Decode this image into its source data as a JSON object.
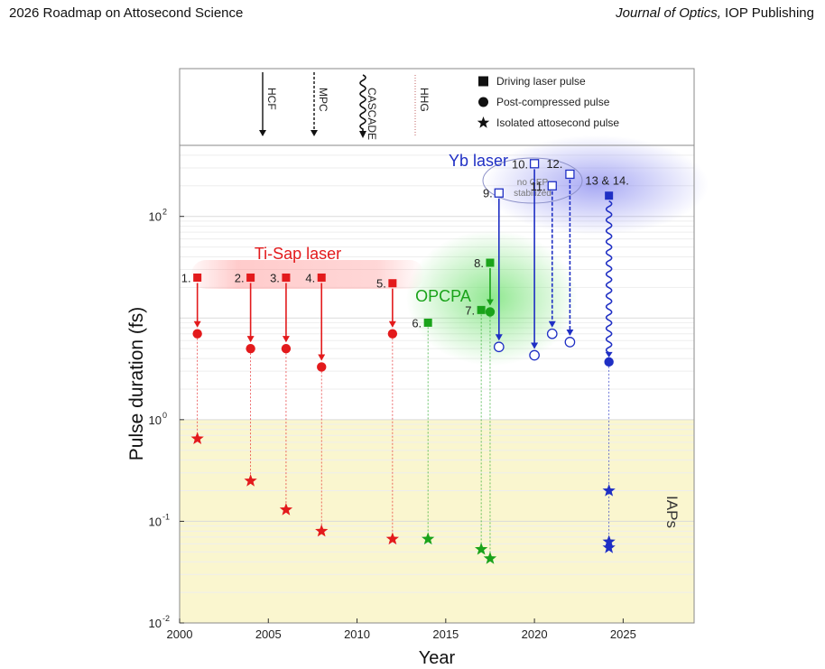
{
  "header": {
    "left": "2026 Roadmap on Attosecond Science",
    "right_italic": "Journal of Optics,",
    "right_plain": " IOP Publishing"
  },
  "legend": {
    "items": [
      {
        "marker": "square",
        "label": "Driving laser pulse"
      },
      {
        "marker": "circle",
        "label": "Post-compressed pulse"
      },
      {
        "marker": "star",
        "label": "Isolated attosecond pulse"
      }
    ],
    "techniques": [
      {
        "label": "HCF",
        "style": "solid"
      },
      {
        "label": "MPC",
        "style": "dashed"
      },
      {
        "label": "CASCADE",
        "style": "wavy"
      },
      {
        "label": "HHG",
        "style": "dotted"
      }
    ]
  },
  "chart_data": {
    "type": "scatter",
    "xlabel": "Year",
    "ylabel": "Pulse duration (fs)",
    "xlim": [
      2000,
      2029
    ],
    "ylim": [
      0.01,
      500
    ],
    "yscale": "log",
    "x_ticks": [
      2000,
      2005,
      2010,
      2015,
      2020,
      2025
    ],
    "y_ticks": [
      {
        "value": 0.01,
        "base": "10",
        "exp": "-2"
      },
      {
        "value": 0.1,
        "base": "10",
        "exp": "-1"
      },
      {
        "value": 1,
        "base": "10",
        "exp": "0"
      },
      {
        "value": 100,
        "base": "10",
        "exp": "2"
      }
    ],
    "shaded_region": {
      "label": "IAPs",
      "from": 0.01,
      "to": 1.0,
      "color": "#faf6cf"
    },
    "regions": [
      {
        "label": "Ti-Sap laser",
        "color": "#e31a1c"
      },
      {
        "label": "OPCPA",
        "color": "#1aa31a"
      },
      {
        "label": "Yb laser",
        "color": "#1f2fc4"
      }
    ],
    "annotation": "no CEP stabilized",
    "colors": {
      "ti": "#e31a1c",
      "opcpa": "#1aa31a",
      "yb": "#1f2fc4"
    },
    "series": [
      {
        "label": "1.",
        "group": "ti",
        "x": 2001,
        "driver": 25,
        "compressed": 7,
        "iap": 0.65,
        "method": "solid",
        "label_side": "left"
      },
      {
        "label": "2.",
        "group": "ti",
        "x": 2004,
        "driver": 25,
        "compressed": 5,
        "iap": 0.25,
        "method": "solid",
        "label_side": "left"
      },
      {
        "label": "3.",
        "group": "ti",
        "x": 2006,
        "driver": 25,
        "compressed": 5,
        "iap": 0.13,
        "method": "solid",
        "label_side": "left"
      },
      {
        "label": "4.",
        "group": "ti",
        "x": 2008,
        "driver": 25,
        "compressed": 3.3,
        "iap": 0.08,
        "method": "solid",
        "label_side": "left"
      },
      {
        "label": "5.",
        "group": "ti",
        "x": 2012,
        "driver": 22,
        "compressed": 7,
        "iap": 0.067,
        "method": "solid",
        "label_side": "left"
      },
      {
        "label": "6.",
        "group": "opcpa",
        "x": 2014,
        "driver": 9,
        "iap": 0.067,
        "label_side": "left"
      },
      {
        "label": "7.",
        "group": "opcpa",
        "x": 2017,
        "driver": 12,
        "iap": 0.053,
        "label_side": "left"
      },
      {
        "label": "8.",
        "group": "opcpa",
        "x": 2017.5,
        "driver": 35,
        "compressed": 11.5,
        "iap": 0.043,
        "method": "solid",
        "label_side": "left"
      },
      {
        "label": "9.",
        "group": "yb",
        "x": 2018,
        "driver": 170,
        "compressed": 5.2,
        "method": "solid",
        "open": true,
        "label_side": "left"
      },
      {
        "label": "10.",
        "group": "yb",
        "x": 2020,
        "driver": 330,
        "compressed": 4.3,
        "method": "solid",
        "open": true,
        "label_side": "left"
      },
      {
        "label": "11.",
        "group": "yb",
        "x": 2021,
        "driver": 200,
        "compressed": 7,
        "method": "dashed",
        "open": true,
        "label_side": "left"
      },
      {
        "label": "12.",
        "group": "yb",
        "x": 2022,
        "driver": 260,
        "compressed": 5.8,
        "method": "dashed",
        "open": true,
        "label_side": "right"
      },
      {
        "label": "13 & 14.",
        "group": "yb",
        "x": 2024.2,
        "driver": 160,
        "compressed": 3.7,
        "method": "wavy",
        "iap_list": [
          0.2,
          0.063,
          0.055
        ],
        "label_side": "above"
      }
    ]
  }
}
